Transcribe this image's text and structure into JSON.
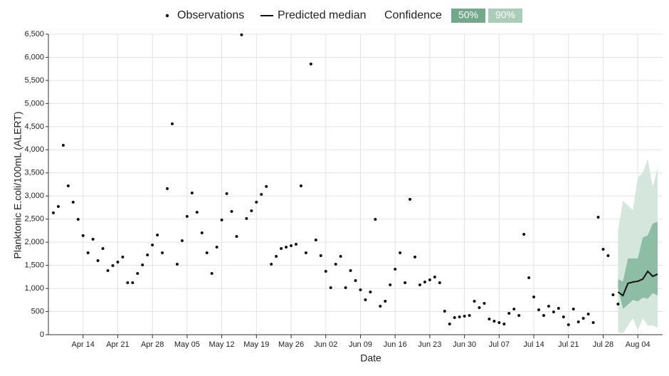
{
  "chart_data": {
    "type": "line",
    "xlabel": "Date",
    "ylabel": "Planktonic E.coli/100mL (ALERT)",
    "legend_title": "Confidence",
    "xlim": [
      7,
      131
    ],
    "xticks": [
      {
        "value": 14,
        "label": "Apr 14"
      },
      {
        "value": 21,
        "label": "Apr 21"
      },
      {
        "value": 28,
        "label": "Apr 28"
      },
      {
        "value": 35,
        "label": "May 05"
      },
      {
        "value": 42,
        "label": "May 12"
      },
      {
        "value": 49,
        "label": "May 19"
      },
      {
        "value": 56,
        "label": "May 26"
      },
      {
        "value": 63,
        "label": "Jun 02"
      },
      {
        "value": 70,
        "label": "Jun 09"
      },
      {
        "value": 77,
        "label": "Jun 16"
      },
      {
        "value": 84,
        "label": "Jun 23"
      },
      {
        "value": 91,
        "label": "Jun 30"
      },
      {
        "value": 98,
        "label": "Jul 07"
      },
      {
        "value": 105,
        "label": "Jul 14"
      },
      {
        "value": 112,
        "label": "Jul 21"
      },
      {
        "value": 119,
        "label": "Jul 28"
      },
      {
        "value": 126,
        "label": "Aug 04"
      }
    ],
    "ylim": [
      0,
      6500
    ],
    "yticks": [
      0,
      500,
      {
        "value": 1000,
        "label": "1,000"
      },
      {
        "value": 1500,
        "label": "1,500"
      },
      {
        "value": 2000,
        "label": "2,000"
      },
      {
        "value": 2500,
        "label": "2,500"
      },
      {
        "value": 3000,
        "label": "3,000"
      },
      {
        "value": 3500,
        "label": "3,500"
      },
      {
        "value": 4000,
        "label": "4,000"
      },
      {
        "value": 4500,
        "label": "4,500"
      },
      {
        "value": 5000,
        "label": "5,000"
      },
      {
        "value": 5500,
        "label": "5,500"
      },
      {
        "value": 6000,
        "label": "6,000"
      },
      {
        "value": 6500,
        "label": "6,500"
      }
    ],
    "grid": true,
    "series": [
      {
        "name": "Observations",
        "style": "points",
        "color": "#111111",
        "x": [
          8,
          9,
          10,
          11,
          12,
          13,
          14,
          15,
          16,
          17,
          18,
          19,
          20,
          21,
          22,
          23,
          24,
          25,
          26,
          27,
          28,
          29,
          30,
          31,
          32,
          33,
          34,
          35,
          36,
          37,
          38,
          39,
          40,
          41,
          42,
          43,
          44,
          45,
          46,
          47,
          48,
          49,
          50,
          51,
          52,
          53,
          54,
          55,
          56,
          57,
          58,
          59,
          60,
          61,
          62,
          63,
          64,
          65,
          66,
          67,
          68,
          69,
          70,
          71,
          72,
          73,
          74,
          75,
          76,
          77,
          78,
          79,
          80,
          81,
          82,
          83,
          84,
          85,
          86,
          87,
          88,
          89,
          90,
          91,
          92,
          93,
          94,
          95,
          96,
          97,
          98,
          99,
          100,
          101,
          102,
          103,
          104,
          105,
          106,
          107,
          108,
          109,
          110,
          111,
          112,
          113,
          114,
          115,
          116,
          117,
          118,
          119,
          120,
          121,
          122
        ],
        "values": [
          2635,
          2773,
          4098,
          3220,
          2866,
          2496,
          2142,
          1772,
          2065,
          1602,
          1864,
          1387,
          1495,
          1572,
          1680,
          1125,
          1125,
          1325,
          1510,
          1726,
          1941,
          2157,
          1772,
          3159,
          4561,
          1525,
          2034,
          2558,
          3066,
          2650,
          2203,
          1772,
          1325,
          1895,
          2481,
          3051,
          2666,
          2126,
          6487,
          2512,
          2681,
          2866,
          3035,
          3205,
          1525,
          1695,
          1864,
          1895,
          1926,
          1957,
          3220,
          1772,
          5855,
          2049,
          1710,
          1371,
          1017,
          1525,
          1695,
          1017,
          1387,
          1171,
          971,
          755,
          924,
          2496,
          616,
          724,
          1079,
          1418,
          1772,
          1125,
          2928,
          1680,
          1079,
          1140,
          1186,
          1248,
          1125,
          508,
          231,
          370,
          385,
          401,
          416,
          724,
          585,
          678,
          339,
          293,
          262,
          231,
          462,
          555,
          416,
          2172,
          1233,
          817,
          539,
          416,
          616,
          493,
          570,
          385,
          216,
          555,
          277,
          354,
          447,
          262,
          2542,
          1849,
          1710,
          863,
          663
        ]
      },
      {
        "name": "Predicted median",
        "style": "line",
        "color": "#111111",
        "x": [
          122,
          123,
          124,
          125,
          126,
          127,
          128,
          129,
          130
        ],
        "values": [
          924,
          847,
          1110,
          1140,
          1156,
          1202,
          1371,
          1263,
          1310
        ]
      }
    ],
    "bands": [
      {
        "name": "90%",
        "color": "#a9cdb9",
        "fill": "#d5e7dd",
        "x": [
          122,
          123,
          124,
          125,
          126,
          127,
          128,
          129,
          130
        ],
        "lower": [
          50,
          30,
          200,
          350,
          100,
          350,
          200,
          200,
          150
        ],
        "upper": [
          2250,
          2900,
          2800,
          2700,
          3400,
          3500,
          3800,
          3200,
          3600
        ]
      },
      {
        "name": "50%",
        "color": "#72a88c",
        "fill": "#8dbda4",
        "x": [
          122,
          123,
          124,
          125,
          126,
          127,
          128,
          129,
          130
        ],
        "lower": [
          1000,
          560,
          650,
          750,
          720,
          800,
          780,
          900,
          850
        ],
        "upper": [
          1200,
          1150,
          1650,
          1650,
          1650,
          2100,
          2150,
          2400,
          2450
        ]
      }
    ]
  }
}
